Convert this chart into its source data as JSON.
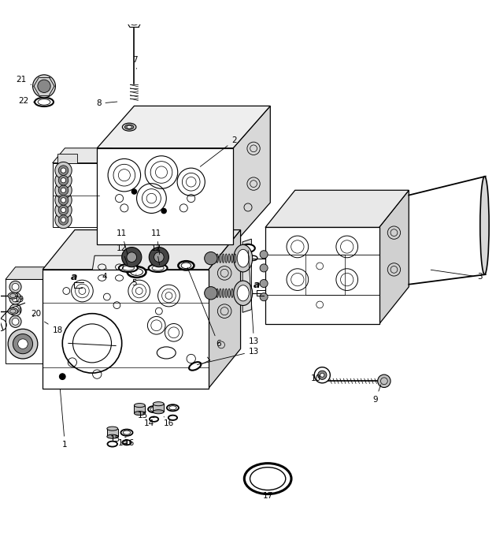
{
  "bg_color": "#ffffff",
  "line_color": "#000000",
  "fig_width": 6.3,
  "fig_height": 6.9,
  "dpi": 100,
  "top_block": {
    "fx": 0.195,
    "fy": 0.555,
    "fw": 0.275,
    "fh": 0.195,
    "ox": 0.075,
    "oy": 0.085
  },
  "bot_block": {
    "fx": 0.085,
    "fy": 0.265,
    "fw": 0.335,
    "fh": 0.24,
    "ox": 0.065,
    "oy": 0.08
  },
  "right_comp": {
    "fx": 0.535,
    "fy": 0.395,
    "fw": 0.23,
    "fh": 0.195,
    "ox": 0.06,
    "oy": 0.075
  }
}
